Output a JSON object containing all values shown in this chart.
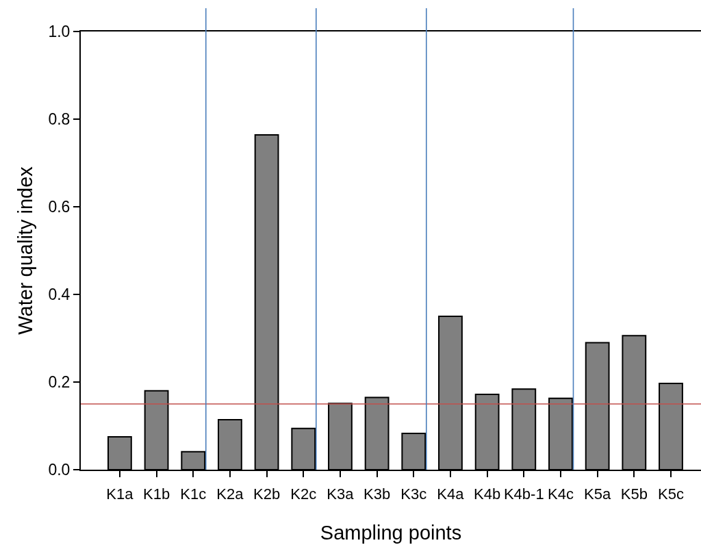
{
  "chart_data": {
    "type": "bar",
    "xlabel": "Sampling points",
    "ylabel": "Water quality index",
    "categories": [
      "K1a",
      "K1b",
      "K1c",
      "K2a",
      "K2b",
      "K2c",
      "K3a",
      "K3b",
      "K3c",
      "K4a",
      "K4b",
      "K4b-1",
      "K4c",
      "K5a",
      "K5b",
      "K5c"
    ],
    "values": [
      0.075,
      0.18,
      0.041,
      0.114,
      0.764,
      0.094,
      0.151,
      0.165,
      0.083,
      0.35,
      0.172,
      0.184,
      0.163,
      0.29,
      0.306,
      0.197
    ],
    "color": "#808080",
    "ylim": [
      0,
      1.0
    ],
    "yticks": [
      {
        "value": 0,
        "label": "0.0"
      },
      0.2,
      0.4,
      0.6,
      0.8,
      {
        "value": 1.0,
        "label": "1.0"
      }
    ],
    "ref_lines": [
      {
        "axis": "y",
        "value": 0.15,
        "color": "#c0504d"
      },
      {
        "axis": "x",
        "value": "K1c",
        "color": "#4a7ebb"
      },
      {
        "axis": "x",
        "value": "K2c",
        "color": "#4a7ebb"
      },
      {
        "axis": "x",
        "value": "K3c",
        "color": "#4a7ebb"
      },
      {
        "axis": "x",
        "value": "K4c",
        "color": "#4a7ebb"
      }
    ]
  }
}
